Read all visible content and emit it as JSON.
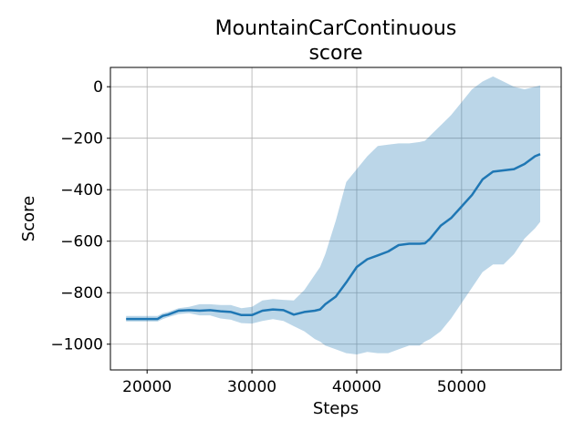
{
  "chart_data": {
    "type": "line",
    "title": "MountainCarContinuous\nscore",
    "title_lines": [
      "MountainCarContinuous",
      "score"
    ],
    "xlabel": "Steps",
    "ylabel": "Score",
    "xlim": [
      16500,
      59500
    ],
    "ylim": [
      -1100,
      75
    ],
    "x_ticks": [
      20000,
      30000,
      40000,
      50000
    ],
    "x_tick_labels": [
      "20000",
      "30000",
      "40000",
      "50000"
    ],
    "y_ticks": [
      0,
      -200,
      -400,
      -600,
      -800,
      -1000
    ],
    "y_tick_labels": [
      "0",
      "−200",
      "−400",
      "−600",
      "−800",
      "−1000"
    ],
    "grid": true,
    "legend": "none",
    "series": [
      {
        "line_color": "#1f77b4",
        "band_color": "#1f77b4",
        "band_alpha": 0.3,
        "x": [
          18000,
          19000,
          20000,
          21000,
          21500,
          22000,
          23000,
          24000,
          25000,
          26000,
          27000,
          28000,
          29000,
          30000,
          31000,
          32000,
          33000,
          34000,
          35000,
          36000,
          36500,
          37000,
          38000,
          39000,
          40000,
          41000,
          42000,
          43000,
          44000,
          45000,
          46000,
          46500,
          47000,
          48000,
          49000,
          50000,
          51000,
          52000,
          53000,
          54000,
          55000,
          56000,
          57000,
          57500
        ],
        "mean": [
          -902,
          -902,
          -902,
          -902,
          -890,
          -885,
          -870,
          -868,
          -870,
          -868,
          -872,
          -875,
          -887,
          -887,
          -870,
          -865,
          -868,
          -885,
          -875,
          -870,
          -865,
          -845,
          -815,
          -760,
          -700,
          -670,
          -655,
          -640,
          -615,
          -610,
          -610,
          -608,
          -590,
          -540,
          -510,
          -465,
          -420,
          -360,
          -330,
          -325,
          -320,
          -300,
          -270,
          -262
        ],
        "upper": [
          -890,
          -890,
          -890,
          -890,
          -880,
          -875,
          -860,
          -855,
          -845,
          -845,
          -848,
          -848,
          -860,
          -855,
          -830,
          -825,
          -828,
          -830,
          -790,
          -730,
          -700,
          -650,
          -520,
          -370,
          -320,
          -270,
          -230,
          -225,
          -220,
          -220,
          -215,
          -210,
          -190,
          -150,
          -110,
          -60,
          -10,
          20,
          40,
          20,
          0,
          -10,
          0,
          5
        ],
        "lower": [
          -912,
          -912,
          -912,
          -912,
          -903,
          -895,
          -883,
          -880,
          -888,
          -888,
          -900,
          -905,
          -918,
          -920,
          -910,
          -903,
          -910,
          -930,
          -950,
          -980,
          -990,
          -1005,
          -1020,
          -1035,
          -1040,
          -1030,
          -1035,
          -1035,
          -1020,
          -1005,
          -1005,
          -990,
          -980,
          -950,
          -900,
          -840,
          -780,
          -720,
          -690,
          -690,
          -650,
          -590,
          -550,
          -525
        ]
      }
    ]
  }
}
